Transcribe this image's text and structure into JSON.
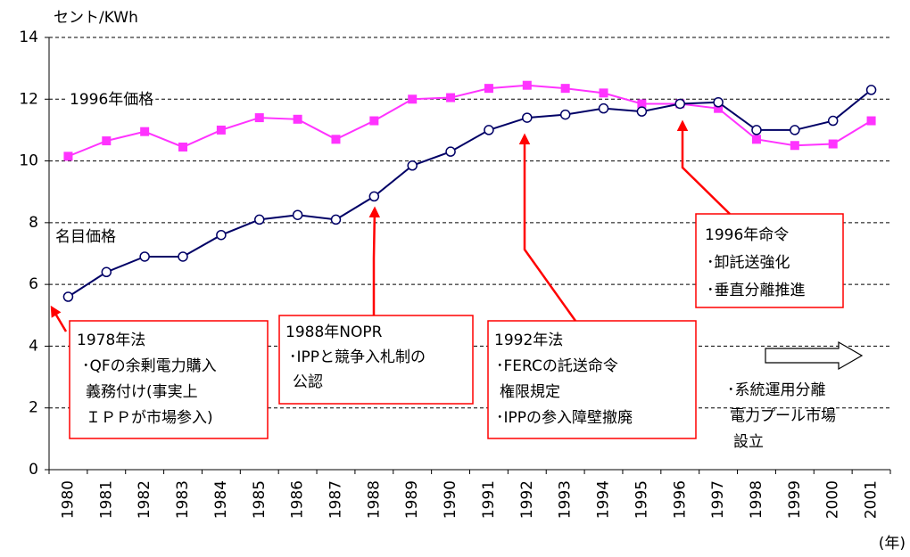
{
  "chart_data": {
    "type": "line",
    "y_label": "セント/KWh",
    "x_label": "(年)",
    "categories": [
      "1980",
      "1981",
      "1982",
      "1983",
      "1984",
      "1985",
      "1986",
      "1987",
      "1988",
      "1989",
      "1990",
      "1991",
      "1992",
      "1993",
      "1994",
      "1995",
      "1996",
      "1997",
      "1998",
      "1999",
      "2000",
      "2001"
    ],
    "series": [
      {
        "name": "1996年価格",
        "color": "#ff33ff",
        "marker": "square",
        "values": [
          10.15,
          10.65,
          10.95,
          10.45,
          11.0,
          11.4,
          11.35,
          10.7,
          11.3,
          12.0,
          12.05,
          12.35,
          12.45,
          12.35,
          12.2,
          11.85,
          11.85,
          11.7,
          10.7,
          10.5,
          10.55,
          11.3
        ]
      },
      {
        "name": "名目価格",
        "color": "#000066",
        "marker": "circle",
        "values": [
          5.6,
          6.4,
          6.9,
          6.9,
          7.6,
          8.1,
          8.25,
          8.1,
          8.85,
          9.85,
          10.3,
          11.0,
          11.4,
          11.5,
          11.7,
          11.6,
          11.85,
          11.9,
          11.0,
          11.0,
          11.3,
          12.3
        ]
      }
    ],
    "ylim": [
      0,
      14
    ],
    "yticks": [
      0,
      2,
      4,
      6,
      8,
      10,
      12,
      14
    ],
    "grid": true,
    "annotations": [
      {
        "lines": [
          "1978年法",
          "･QFの余剰電力購入",
          "義務付け(事実上",
          "ＩＰＰが市場参入)"
        ]
      },
      {
        "lines": [
          "1988年NOPR",
          "･IPPと競争入札制の",
          "公認"
        ]
      },
      {
        "lines": [
          "1992年法",
          "･FERCの託送命令",
          "権限規定",
          "･IPPの参入障壁撤廃"
        ]
      },
      {
        "lines": [
          "1996年命令",
          "･卸託送強化",
          "･垂直分離推進"
        ]
      },
      {
        "lines": [
          "･系統運用分離",
          "電力プール市場",
          "設立"
        ]
      }
    ]
  }
}
